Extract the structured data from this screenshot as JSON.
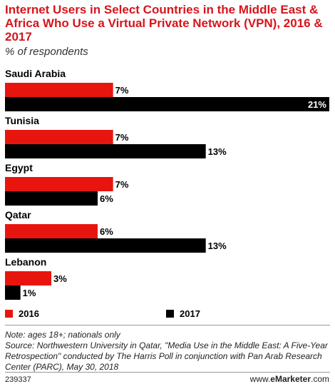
{
  "title": "Internet Users in Select Countries in the Middle East & Africa Who Use a Virtual Private Network (VPN), 2016 & 2017",
  "subtitle": "% of respondents",
  "colors": {
    "s2016": "#e8150f",
    "s2017": "#000000"
  },
  "chart_data": {
    "type": "bar",
    "orientation": "horizontal",
    "categories": [
      "Saudi Arabia",
      "Tunisia",
      "Egypt",
      "Qatar",
      "Lebanon"
    ],
    "series": [
      {
        "name": "2016",
        "values": [
          7,
          7,
          7,
          6,
          3
        ],
        "labels": [
          "7%",
          "7%",
          "7%",
          "6%",
          "3%"
        ]
      },
      {
        "name": "2017",
        "values": [
          21,
          13,
          6,
          13,
          1
        ],
        "labels": [
          "21%",
          "13%",
          "6%",
          "13%",
          "1%"
        ]
      }
    ],
    "xlim": [
      0,
      21
    ],
    "grid": false,
    "legend": "bottom"
  },
  "notes": {
    "note": "Note: ages 18+; nationals only",
    "source": "Source: Northwestern University in Qatar, \"Media Use in the Middle East: A Five-Year Retrospection\" conducted by The Harris Poll in conjunction with Pan Arab Research Center (PARC), May 30, 2018"
  },
  "footer": {
    "id": "239337",
    "brand_prefix": "www.",
    "brand_name": "eMarketer",
    "brand_suffix": ".com"
  }
}
